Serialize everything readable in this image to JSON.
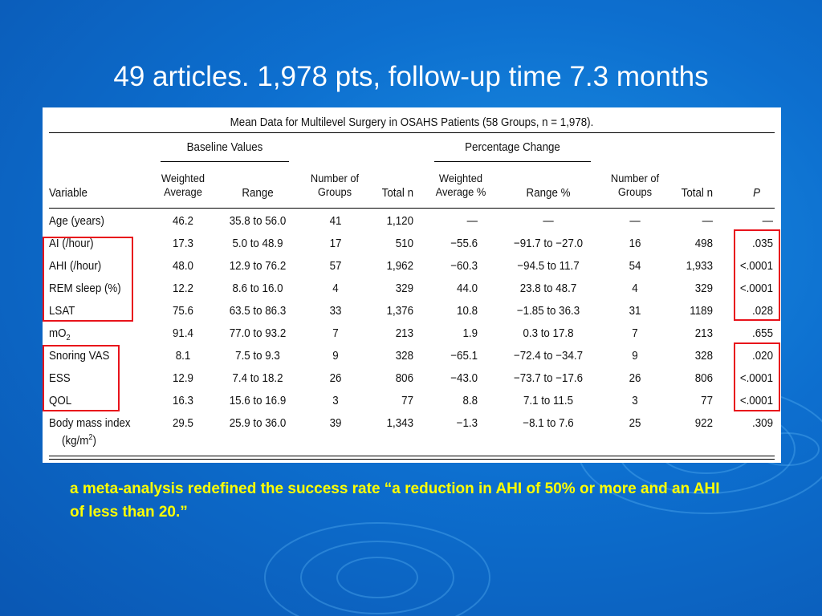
{
  "slide": {
    "title": "49 articles. 1,978 pts, follow-up time 7.3 months",
    "caption": "a meta-analysis redefined the success rate “a reduction in AHI of 50% or more and an AHI of less than 20.”"
  },
  "table": {
    "title": "Mean Data for Multilevel Surgery in OSAHS Patients (58 Groups, n = 1,978).",
    "group_headers": {
      "baseline": "Baseline Values",
      "percentage": "Percentage Change"
    },
    "columns": {
      "variable": "Variable",
      "weighted_average": "Weighted Average",
      "range": "Range",
      "number_of_groups": "Number of Groups",
      "total_n": "Total n",
      "weighted_average_pct": "Weighted Average %",
      "range_pct": "Range %",
      "number_of_groups_2": "Number of Groups",
      "total_n_2": "Total n",
      "p": "P"
    },
    "rows": [
      {
        "variable": "Age (years)",
        "wavg": "46.2",
        "range": "35.8 to 56.0",
        "groups": "41",
        "total": "1,120",
        "wavg_pct": "—",
        "range_pct": "—",
        "groups2": "—",
        "total2": "—",
        "p": "—"
      },
      {
        "variable": "AI (/hour)",
        "wavg": "17.3",
        "range": "5.0 to 48.9",
        "groups": "17",
        "total": "510",
        "wavg_pct": "−55.6",
        "range_pct": "−91.7 to −27.0",
        "groups2": "16",
        "total2": "498",
        "p": ".035"
      },
      {
        "variable": "AHI (/hour)",
        "wavg": "48.0",
        "range": "12.9 to 76.2",
        "groups": "57",
        "total": "1,962",
        "wavg_pct": "−60.3",
        "range_pct": "−94.5 to 11.7",
        "groups2": "54",
        "total2": "1,933",
        "p": "<.0001"
      },
      {
        "variable": "REM sleep (%)",
        "wavg": "12.2",
        "range": "8.6 to 16.0",
        "groups": "4",
        "total": "329",
        "wavg_pct": "44.0",
        "range_pct": "23.8 to 48.7",
        "groups2": "4",
        "total2": "329",
        "p": "<.0001"
      },
      {
        "variable": "LSAT",
        "wavg": "75.6",
        "range": "63.5 to 86.3",
        "groups": "33",
        "total": "1,376",
        "wavg_pct": "10.8",
        "range_pct": "−1.85 to 36.3",
        "groups2": "31",
        "total2": "1189",
        "p": ".028"
      },
      {
        "variable": "mO2",
        "wavg": "91.4",
        "range": "77.0 to 93.2",
        "groups": "7",
        "total": "213",
        "wavg_pct": "1.9",
        "range_pct": "0.3 to 17.8",
        "groups2": "7",
        "total2": "213",
        "p": ".655"
      },
      {
        "variable": "Snoring VAS",
        "wavg": "8.1",
        "range": "7.5 to 9.3",
        "groups": "9",
        "total": "328",
        "wavg_pct": "−65.1",
        "range_pct": "−72.4 to −34.7",
        "groups2": "9",
        "total2": "328",
        "p": ".020"
      },
      {
        "variable": "ESS",
        "wavg": "12.9",
        "range": "7.4 to 18.2",
        "groups": "26",
        "total": "806",
        "wavg_pct": "−43.0",
        "range_pct": "−73.7 to −17.6",
        "groups2": "26",
        "total2": "806",
        "p": "<.0001"
      },
      {
        "variable": "QOL",
        "wavg": "16.3",
        "range": "15.6 to 16.9",
        "groups": "3",
        "total": "77",
        "wavg_pct": "8.8",
        "range_pct": "7.1 to 11.5",
        "groups2": "3",
        "total2": "77",
        "p": "<.0001"
      },
      {
        "variable": "Body mass index",
        "variable_line2": "(kg/m2)",
        "wavg": "29.5",
        "range": "25.9 to 36.0",
        "groups": "39",
        "total": "1,343",
        "wavg_pct": "−1.3",
        "range_pct": "−8.1 to 7.6",
        "groups2": "25",
        "total2": "922",
        "p": ".309"
      }
    ]
  },
  "colors": {
    "highlight": "#e8131b",
    "caption": "#ffff00",
    "title": "#ffffff",
    "background": "#0d6fcf"
  }
}
